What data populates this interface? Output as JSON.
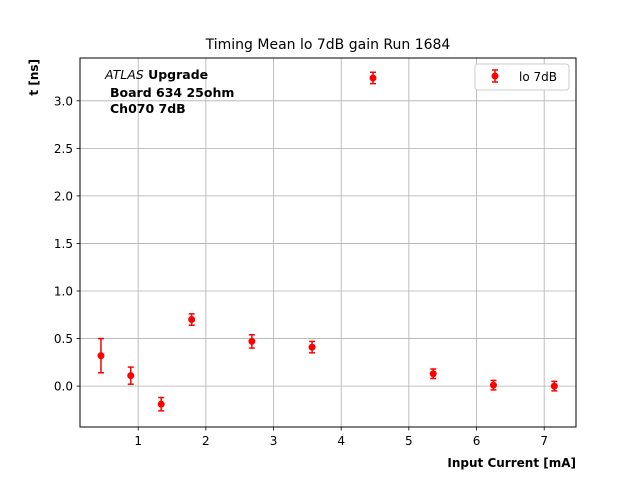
{
  "chart_data": {
    "type": "scatter",
    "title": "Timing Mean lo 7dB gain Run 1684",
    "xlabel": "Input Current [mA]",
    "ylabel": "t [ns]",
    "xlim": [
      0.14,
      7.47
    ],
    "ylim": [
      -0.43,
      3.45
    ],
    "xticks": [
      1,
      2,
      3,
      4,
      5,
      6,
      7
    ],
    "yticks": [
      0.0,
      0.5,
      1.0,
      1.5,
      2.0,
      2.5,
      3.0
    ],
    "grid": true,
    "legend_position": "top-right",
    "annotation": {
      "line1_italic": "ATLAS",
      "line1_bold": " Upgrade",
      "line2": "Board 634 25ohm",
      "line3": "Ch070 7dB"
    },
    "series": [
      {
        "name": "lo 7dB",
        "color": "#ff0000",
        "x": [
          0.45,
          0.89,
          1.34,
          1.79,
          2.68,
          3.57,
          4.47,
          5.36,
          6.25,
          7.15
        ],
        "y": [
          0.32,
          0.11,
          -0.19,
          0.7,
          0.47,
          0.41,
          3.24,
          0.13,
          0.01,
          0.0
        ],
        "yerr": [
          0.18,
          0.09,
          0.07,
          0.06,
          0.07,
          0.06,
          0.06,
          0.05,
          0.05,
          0.05
        ]
      }
    ]
  }
}
